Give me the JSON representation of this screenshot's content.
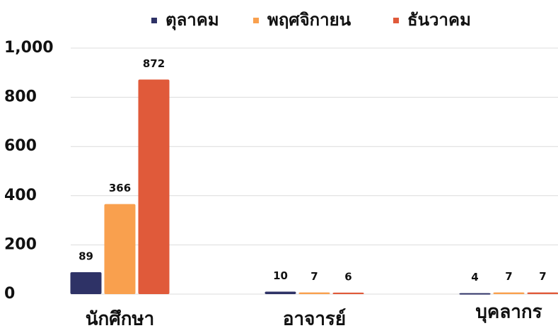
{
  "chart_data": {
    "type": "bar",
    "categories": [
      "นักศึกษา",
      "อาจารย์",
      "บุคลากร"
    ],
    "series": [
      {
        "name": "ตุลาคม",
        "color": "#2e3266",
        "values": [
          89,
          10,
          4
        ]
      },
      {
        "name": "พฤศจิกายน",
        "color": "#f9a04e",
        "values": [
          366,
          7,
          7
        ]
      },
      {
        "name": "ธันวาคม",
        "color": "#e05a3a",
        "values": [
          872,
          6,
          7
        ]
      }
    ],
    "ylim": [
      0,
      1000
    ],
    "yticks": [
      0,
      200,
      400,
      600,
      800,
      {
        "value": 1000,
        "label": "1,000"
      }
    ],
    "grid": true,
    "legend": "top"
  }
}
